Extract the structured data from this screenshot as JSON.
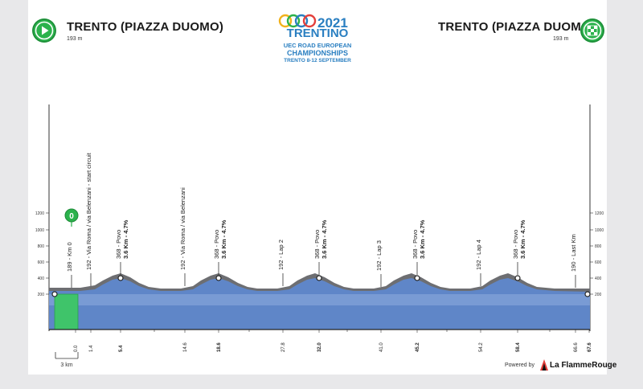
{
  "header": {
    "start_title": "TRENTO (PIAZZA DUOMO)",
    "start_alt": "193 m",
    "finish_title": "TRENTO (PIAZZA DUOMO)",
    "finish_alt": "193 m",
    "start_icon": "play-icon",
    "finish_icon": "checkered-flag-icon"
  },
  "logo": {
    "year": "2021",
    "name": "TRENTINO",
    "line1": "UEC ROAD EUROPEAN",
    "line2": "CHAMPIONSHIPS",
    "line3": "TRENTO 8-12 SEPTEMBER"
  },
  "axis": {
    "alt_ticks": [
      "1200",
      "1000",
      "800",
      "600",
      "400",
      "200"
    ]
  },
  "km_marker": "0",
  "waypoints": [
    {
      "label": "189 - Km 0"
    },
    {
      "label": "192 - Via Roma / via Belenzani - start circuit"
    },
    {
      "label": "368 - Povo",
      "sub": "3.6 Km - 4.7%"
    },
    {
      "label": "192 - Via Roma / via Belenzani"
    },
    {
      "label": "368 - Povo",
      "sub": "3.6 Km - 4.7%"
    },
    {
      "label": "192 - Lap 2"
    },
    {
      "label": "368 - Povo",
      "sub": "3.6 Km - 4.7%"
    },
    {
      "label": "192 - Lap 3"
    },
    {
      "label": "368 - Povo",
      "sub": "3.6 Km - 4.7%"
    },
    {
      "label": "192 - Lap 4"
    },
    {
      "label": "368 - Povo",
      "sub": "3.6 Km - 4.7%"
    },
    {
      "label": "190 - Last Km"
    }
  ],
  "km_labels": [
    "0.0",
    "1.4",
    "5.4",
    "14.6",
    "18.6",
    "27.8",
    "32.0",
    "41.0",
    "45.2",
    "54.2",
    "58.4",
    "66.6",
    "67.6"
  ],
  "scale_label": "3 km",
  "footer": {
    "powered_by": "Powered by",
    "brand": "La FlammeRouge"
  },
  "colors": {
    "start_green": "#2bb24c",
    "profile_blue": "#5f86c8",
    "climb_grey": "#6d6e72"
  }
}
